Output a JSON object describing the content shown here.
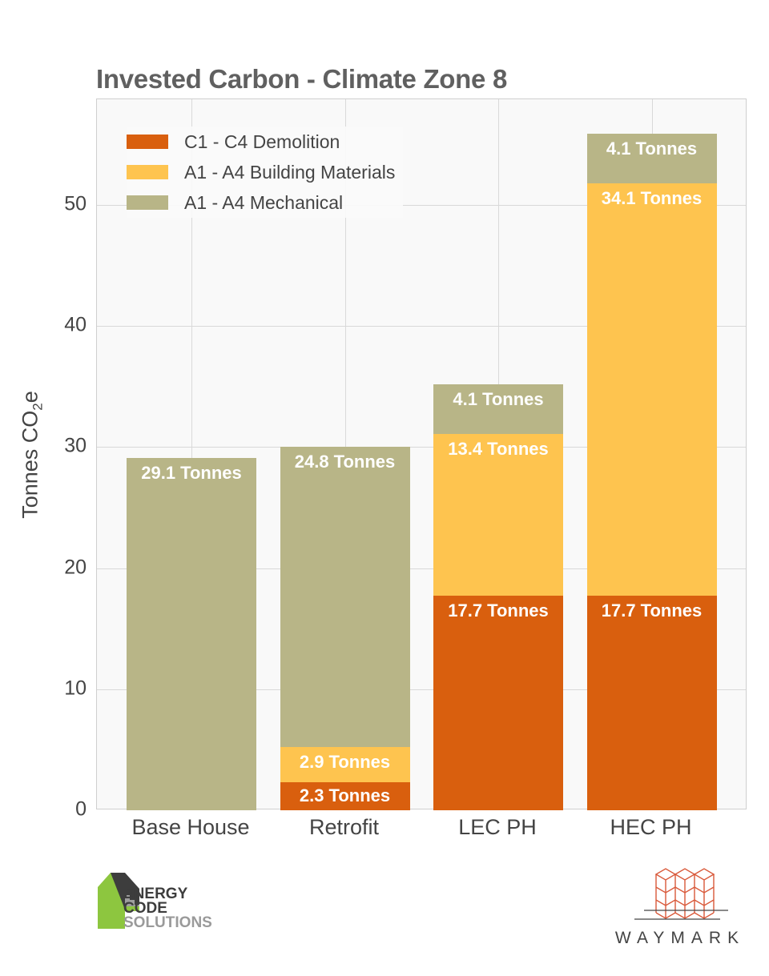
{
  "title": "Invested Carbon - Climate Zone 8",
  "colors": {
    "demolition": "#d95f0e",
    "materials": "#fec44f",
    "mechanical": "#b8b587"
  },
  "legend": [
    {
      "label": "C1 - C4 Demolition",
      "color": "#d95f0e"
    },
    {
      "label": "A1 - A4 Building Materials",
      "color": "#fec44f"
    },
    {
      "label": "A1 - A4 Mechanical",
      "color": "#b8b587"
    }
  ],
  "axis": {
    "ylabel_main": "Tonnes CO",
    "ylabel_sub": "2",
    "ylabel_tail": "e",
    "yticks": [
      "0",
      "10",
      "20",
      "30",
      "40",
      "50"
    ],
    "xticks": [
      "Base House",
      "Retrofit",
      "LEC PH",
      "HEC PH"
    ]
  },
  "bars": [
    {
      "name": "Base House",
      "segments": [
        {
          "series": "mechanical",
          "label": "29.1 Tonnes"
        }
      ]
    },
    {
      "name": "Retrofit",
      "segments": [
        {
          "series": "demolition",
          "label": "2.3 Tonnes"
        },
        {
          "series": "materials",
          "label": "2.9 Tonnes"
        },
        {
          "series": "mechanical",
          "label": "24.8 Tonnes"
        }
      ]
    },
    {
      "name": "LEC PH",
      "segments": [
        {
          "series": "demolition",
          "label": "17.7 Tonnes"
        },
        {
          "series": "materials",
          "label": "13.4 Tonnes"
        },
        {
          "series": "mechanical",
          "label": "4.1 Tonnes"
        }
      ]
    },
    {
      "name": "HEC PH",
      "segments": [
        {
          "series": "demolition",
          "label": "17.7 Tonnes"
        },
        {
          "series": "materials",
          "label": "34.1 Tonnes"
        },
        {
          "series": "mechanical",
          "label": "4.1 Tonnes"
        }
      ]
    }
  ],
  "logos": {
    "left": {
      "line1": "ENERGY",
      "line2": "CODE",
      "line3": "SOLUTIONS"
    },
    "right": {
      "text": "WAYMARK"
    }
  },
  "chart_data": {
    "type": "bar",
    "stacked": true,
    "title": "Invested Carbon - Climate Zone 8",
    "xlabel": "",
    "ylabel": "Tonnes CO2e",
    "ylim": [
      0,
      58
    ],
    "yticks": [
      0,
      10,
      20,
      30,
      40,
      50
    ],
    "grid": true,
    "legend_position": "upper left",
    "categories": [
      "Base House",
      "Retrofit",
      "LEC PH",
      "HEC PH"
    ],
    "series": [
      {
        "name": "C1 - C4 Demolition",
        "color": "#d95f0e",
        "values": [
          0,
          2.3,
          17.7,
          17.7
        ]
      },
      {
        "name": "A1 - A4 Building Materials",
        "color": "#fec44f",
        "values": [
          0,
          2.9,
          13.4,
          34.1
        ]
      },
      {
        "name": "A1 - A4 Mechanical",
        "color": "#b8b587",
        "values": [
          29.1,
          24.8,
          4.1,
          4.1
        ]
      }
    ],
    "data_labels": [
      [
        "29.1 Tonnes"
      ],
      [
        "2.3 Tonnes",
        "2.9 Tonnes",
        "24.8 Tonnes"
      ],
      [
        "17.7 Tonnes",
        "13.4 Tonnes",
        "4.1 Tonnes"
      ],
      [
        "17.7 Tonnes",
        "34.1 Tonnes",
        "4.1 Tonnes"
      ]
    ]
  }
}
